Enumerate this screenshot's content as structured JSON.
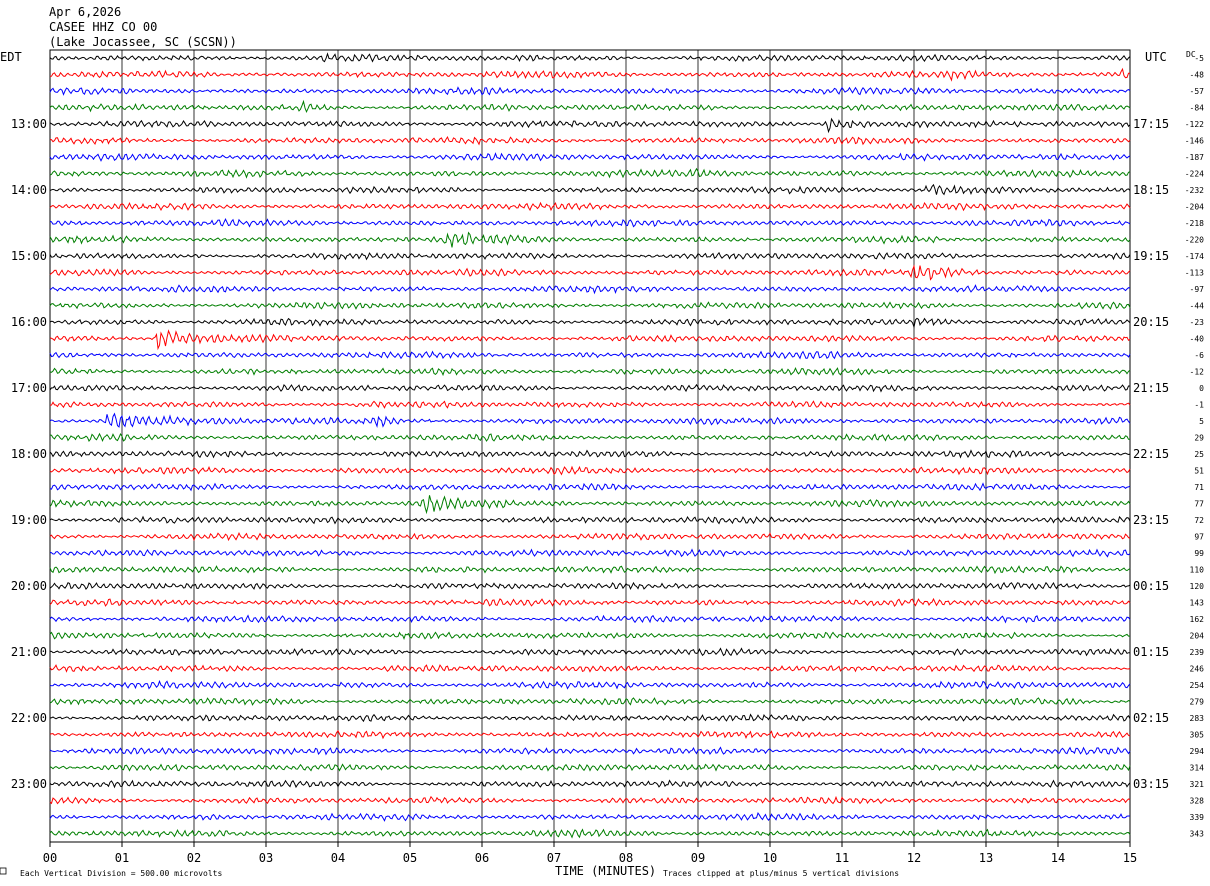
{
  "header": {
    "date": "Apr 6,2026",
    "station": "CASEE HHZ CO 00",
    "location": "(Lake Jocassee, SC (SCSN))"
  },
  "left_tz": "EDT",
  "right_tz": "UTC",
  "dc_label": "DC",
  "footer": {
    "scale_note": "Each Vertical Division =  500.00 microvolts",
    "xlabel": "TIME (MINUTES)",
    "clip_note": "Traces clipped at plus/minus 5 vertical divisions"
  },
  "colors": {
    "trace_cycle": [
      "#000000",
      "#ff0000",
      "#0000ff",
      "#007f00"
    ],
    "grid": "#000000",
    "background": "#ffffff"
  },
  "chart_data": {
    "type": "line",
    "title": "CASEE HHZ CO 00",
    "xlabel": "TIME (MINUTES)",
    "xlim": [
      0,
      15
    ],
    "x_ticks": [
      "00",
      "01",
      "02",
      "03",
      "04",
      "05",
      "06",
      "07",
      "08",
      "09",
      "10",
      "11",
      "12",
      "13",
      "14",
      "15"
    ],
    "minutes_per_line": 15,
    "left_hour_labels": [
      "13:00",
      "14:00",
      "15:00",
      "16:00",
      "17:00",
      "18:00",
      "19:00",
      "20:00",
      "21:00",
      "22:00",
      "23:00"
    ],
    "right_hour_labels": [
      "17:15",
      "18:15",
      "19:15",
      "20:15",
      "21:15",
      "22:15",
      "23:15",
      "00:15",
      "01:15",
      "02:15",
      "03:15"
    ],
    "dc_offsets": [
      -5,
      -48,
      -57,
      -84,
      -122,
      -146,
      -187,
      -224,
      -232,
      -204,
      -218,
      -220,
      -174,
      -113,
      -97,
      -44,
      -23,
      -40,
      -6,
      -12,
      0,
      -1,
      5,
      29,
      25,
      51,
      71,
      77,
      72,
      97,
      99,
      110,
      120,
      143,
      162,
      204,
      239,
      246,
      254,
      279,
      283,
      305,
      294,
      314,
      321,
      328,
      339,
      343
    ],
    "events": [
      {
        "line": 0,
        "minute": 3.8,
        "amp": 0.9,
        "dur": 0.3
      },
      {
        "line": 1,
        "minute": 12.5,
        "amp": 0.6,
        "dur": 0.3
      },
      {
        "line": 1,
        "minute": 14.9,
        "amp": 0.9,
        "dur": 0.2
      },
      {
        "line": 3,
        "minute": 3.5,
        "amp": 0.9,
        "dur": 0.3
      },
      {
        "line": 4,
        "minute": 10.8,
        "amp": 1.8,
        "dur": 0.7
      },
      {
        "line": 7,
        "minute": 8.9,
        "amp": 0.7,
        "dur": 0.5
      },
      {
        "line": 8,
        "minute": 12.2,
        "amp": 1.2,
        "dur": 1.2
      },
      {
        "line": 11,
        "minute": 5.5,
        "amp": 1.6,
        "dur": 0.8
      },
      {
        "line": 13,
        "minute": 12.0,
        "amp": 2.0,
        "dur": 0.9
      },
      {
        "line": 16,
        "minute": 12.0,
        "amp": 0.9,
        "dur": 0.8
      },
      {
        "line": 17,
        "minute": 1.5,
        "amp": 2.2,
        "dur": 0.9
      },
      {
        "line": 22,
        "minute": 0.8,
        "amp": 2.0,
        "dur": 1.3
      },
      {
        "line": 22,
        "minute": 4.5,
        "amp": 1.0,
        "dur": 0.5
      },
      {
        "line": 27,
        "minute": 5.2,
        "amp": 1.8,
        "dur": 0.8
      }
    ]
  }
}
